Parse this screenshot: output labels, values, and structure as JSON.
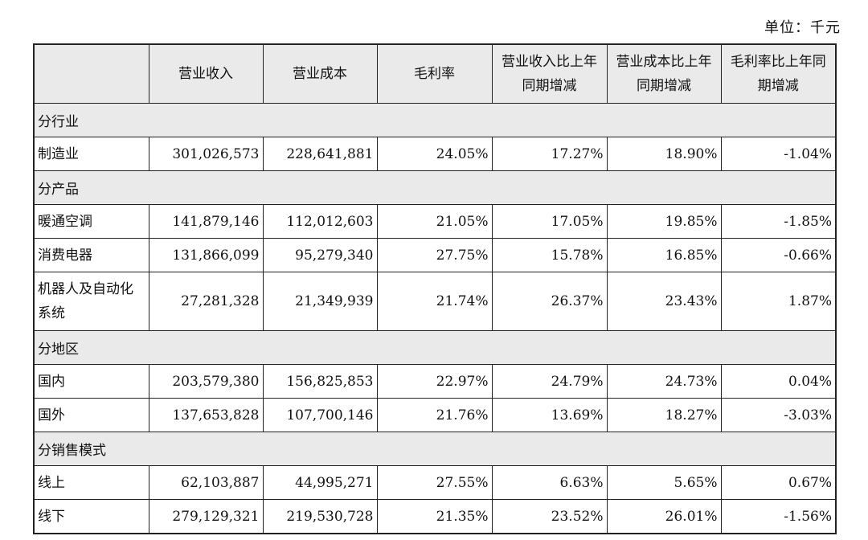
{
  "unit_label": "单位：千元",
  "headers": [
    "",
    "营业收入",
    "营业成本",
    "毛利率",
    "营业收入比上年同期增减",
    "营业成本比上年同期增减",
    "毛利率比上年同期增减"
  ],
  "sections": [
    {
      "title": "分行业",
      "rows": [
        [
          "制造业",
          "301,026,573",
          "228,641,881",
          "24.05%",
          "17.27%",
          "18.90%",
          "-1.04%"
        ]
      ]
    },
    {
      "title": "分产品",
      "rows": [
        [
          "暖通空调",
          "141,879,146",
          "112,012,603",
          "21.05%",
          "17.05%",
          "19.85%",
          "-1.85%"
        ],
        [
          "消费电器",
          "131,866,099",
          "95,279,340",
          "27.75%",
          "15.78%",
          "16.85%",
          "-0.66%"
        ],
        [
          "机器人及自动化系统",
          "27,281,328",
          "21,349,939",
          "21.74%",
          "26.37%",
          "23.43%",
          "1.87%"
        ]
      ]
    },
    {
      "title": "分地区",
      "rows": [
        [
          "国内",
          "203,579,380",
          "156,825,853",
          "22.97%",
          "24.79%",
          "24.73%",
          "0.04%"
        ],
        [
          "国外",
          "137,653,828",
          "107,700,146",
          "21.76%",
          "13.69%",
          "18.27%",
          "-3.03%"
        ]
      ]
    },
    {
      "title": "分销售模式",
      "rows": [
        [
          "线上",
          "62,103,887",
          "44,995,271",
          "27.55%",
          "6.63%",
          "5.65%",
          "0.67%"
        ],
        [
          "线下",
          "279,129,321",
          "219,530,728",
          "21.35%",
          "23.52%",
          "26.01%",
          "-1.56%"
        ]
      ]
    }
  ]
}
